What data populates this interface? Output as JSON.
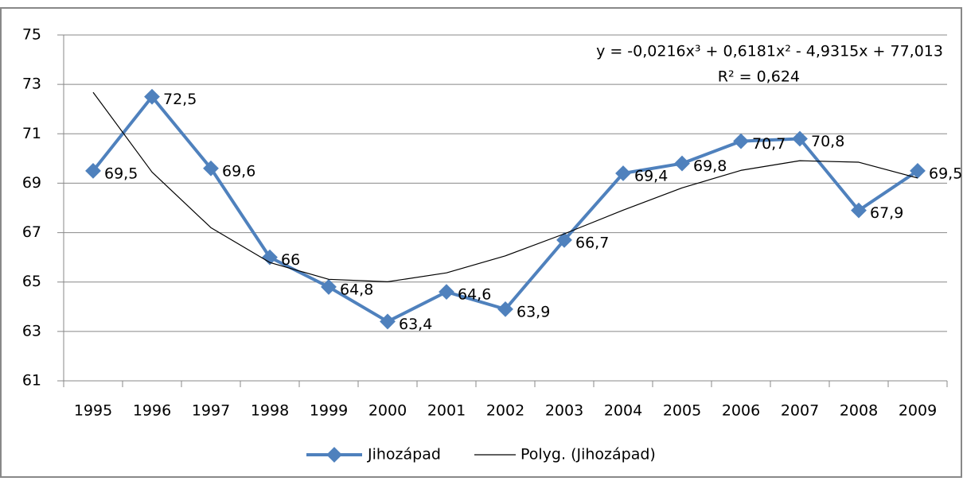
{
  "chart_data": {
    "type": "line",
    "categories": [
      "1995",
      "1996",
      "1997",
      "1998",
      "1999",
      "2000",
      "2001",
      "2002",
      "2003",
      "2004",
      "2005",
      "2006",
      "2007",
      "2008",
      "2009"
    ],
    "series": [
      {
        "name": "Jihozápad",
        "color": "#4f81bd",
        "values": [
          69.5,
          72.5,
          69.6,
          66,
          64.8,
          63.4,
          64.6,
          63.9,
          66.7,
          69.4,
          69.8,
          70.7,
          70.8,
          67.9,
          69.5
        ],
        "value_labels": [
          "69,5",
          "72,5",
          "69,6",
          "66",
          "64,8",
          "63,4",
          "64,6",
          "63,9",
          "66,7",
          "69,4",
          "69,8",
          "70,7",
          "70,8",
          "67,9",
          "69,5"
        ]
      },
      {
        "name": "Polyg. (Jihozápad)",
        "color": "#000000",
        "values": [
          72.68,
          69.45,
          67.2,
          65.79,
          65.11,
          65.01,
          65.37,
          66.06,
          66.95,
          67.91,
          68.81,
          69.52,
          69.91,
          69.85,
          69.21
        ]
      }
    ],
    "annotations": [
      "y = -0,0216x³ + 0,6181x² - 4,9315x + 77,013",
      "R² = 0,624"
    ],
    "ylim": [
      61,
      75
    ],
    "yticks": [
      61,
      63,
      65,
      67,
      69,
      71,
      73,
      75
    ],
    "grid": true,
    "legend": "bottom"
  }
}
